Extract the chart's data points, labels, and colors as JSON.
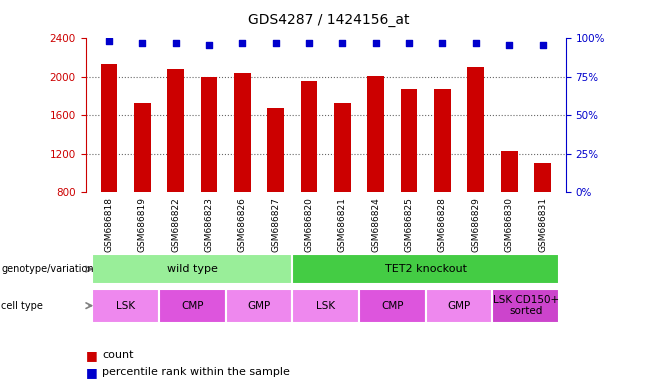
{
  "title": "GDS4287 / 1424156_at",
  "samples": [
    "GSM686818",
    "GSM686819",
    "GSM686822",
    "GSM686823",
    "GSM686826",
    "GSM686827",
    "GSM686820",
    "GSM686821",
    "GSM686824",
    "GSM686825",
    "GSM686828",
    "GSM686829",
    "GSM686830",
    "GSM686831"
  ],
  "counts": [
    2130,
    1730,
    2080,
    2000,
    2040,
    1680,
    1960,
    1730,
    2010,
    1870,
    1870,
    2100,
    1230,
    1100
  ],
  "percentiles": [
    98,
    97,
    97,
    96,
    97,
    97,
    97,
    97,
    97,
    97,
    97,
    97,
    96,
    96
  ],
  "bar_color": "#CC0000",
  "dot_color": "#0000CC",
  "ylim_left": [
    800,
    2400
  ],
  "ylim_right": [
    0,
    100
  ],
  "yticks_left": [
    800,
    1200,
    1600,
    2000,
    2400
  ],
  "yticks_right": [
    0,
    25,
    50,
    75,
    100
  ],
  "genotype_groups": [
    {
      "label": "wild type",
      "start": 0,
      "end": 6,
      "color": "#99EE99"
    },
    {
      "label": "TET2 knockout",
      "start": 6,
      "end": 14,
      "color": "#44CC44"
    }
  ],
  "cell_groups": [
    {
      "label": "LSK",
      "start": 0,
      "end": 2,
      "color": "#EE88EE"
    },
    {
      "label": "CMP",
      "start": 2,
      "end": 4,
      "color": "#DD55DD"
    },
    {
      "label": "GMP",
      "start": 4,
      "end": 6,
      "color": "#EE88EE"
    },
    {
      "label": "LSK",
      "start": 6,
      "end": 8,
      "color": "#EE88EE"
    },
    {
      "label": "CMP",
      "start": 8,
      "end": 10,
      "color": "#DD55DD"
    },
    {
      "label": "GMP",
      "start": 10,
      "end": 12,
      "color": "#EE88EE"
    },
    {
      "label": "LSK CD150+\nsorted",
      "start": 12,
      "end": 14,
      "color": "#CC44CC"
    }
  ],
  "left_axis_color": "#CC0000",
  "right_axis_color": "#0000CC",
  "legend_count_color": "#CC0000",
  "legend_dot_color": "#0000CC",
  "bar_width": 0.5,
  "label_bg_color": "#CCCCCC",
  "geno_label": "genotype/variation",
  "cell_label": "cell type"
}
